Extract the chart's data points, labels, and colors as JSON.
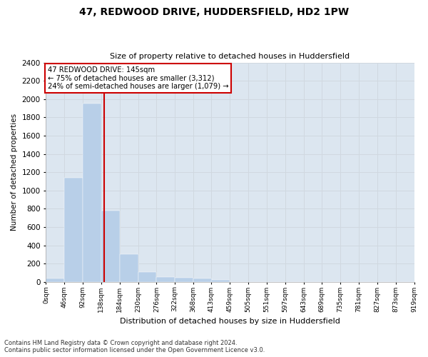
{
  "title": "47, REDWOOD DRIVE, HUDDERSFIELD, HD2 1PW",
  "subtitle": "Size of property relative to detached houses in Huddersfield",
  "xlabel": "Distribution of detached houses by size in Huddersfield",
  "ylabel": "Number of detached properties",
  "bin_edges": [
    0,
    46,
    92,
    138,
    184,
    230,
    276,
    322,
    368,
    413,
    459,
    505,
    551,
    597,
    643,
    689,
    735,
    781,
    827,
    873,
    919
  ],
  "bar_values": [
    35,
    1135,
    1950,
    780,
    300,
    105,
    50,
    45,
    35,
    20,
    0,
    0,
    0,
    0,
    0,
    0,
    0,
    0,
    0,
    0
  ],
  "bar_color": "#b8cfe8",
  "red_line_x": 145,
  "annotation_title": "47 REDWOOD DRIVE: 145sqm",
  "annotation_line1": "← 75% of detached houses are smaller (3,312)",
  "annotation_line2": "24% of semi-detached houses are larger (1,079) →",
  "annotation_box_facecolor": "#ffffff",
  "annotation_box_edgecolor": "#cc0000",
  "red_line_color": "#cc0000",
  "ylim": [
    0,
    2400
  ],
  "yticks": [
    0,
    200,
    400,
    600,
    800,
    1000,
    1200,
    1400,
    1600,
    1800,
    2000,
    2200,
    2400
  ],
  "grid_color": "#d0d8e0",
  "bg_color": "#dce6f0",
  "fig_bg_color": "#ffffff",
  "footnote1": "Contains HM Land Registry data © Crown copyright and database right 2024.",
  "footnote2": "Contains public sector information licensed under the Open Government Licence v3.0."
}
